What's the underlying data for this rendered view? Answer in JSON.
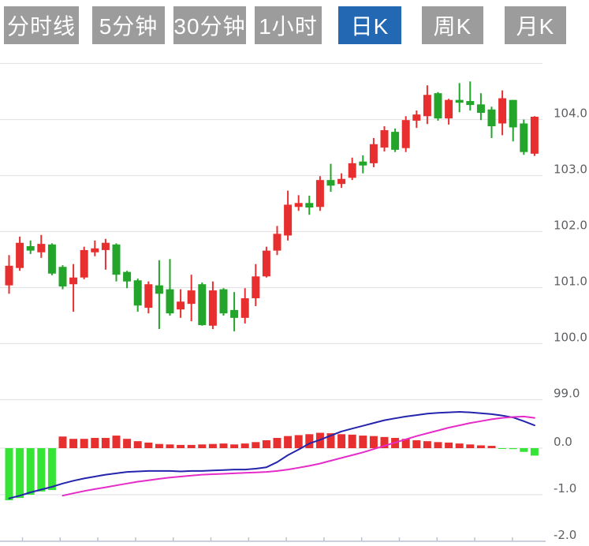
{
  "toolbar": {
    "tabs": [
      {
        "label": "分时线",
        "active": false
      },
      {
        "label": "5分钟",
        "active": false
      },
      {
        "label": "30分钟",
        "active": false
      },
      {
        "label": "1小时",
        "active": false
      },
      {
        "label": "日K",
        "active": true
      },
      {
        "label": "周K",
        "active": false
      },
      {
        "label": "月K",
        "active": false
      }
    ]
  },
  "colors": {
    "background": "#ffffff",
    "tab_bg": "#9c9c9c",
    "tab_active_bg": "#2268b2",
    "tab_text": "#ffffff",
    "candle_up": "#e82f2f",
    "candle_down": "#23a42a",
    "macd_bar_up": "#e82f2f",
    "macd_bar_down": "#36e436",
    "dif_line": "#2424ad",
    "dea_line": "#e62cc8",
    "grid": "#e4e4e6",
    "axis": "#b9c2d2",
    "label": "#5d5f63"
  },
  "chart_data": {
    "type": "candlestick+macd",
    "title": "",
    "price_axis": {
      "labels": [
        "104.0",
        "103.0",
        "102.0",
        "101.0",
        "100.0",
        "99.0"
      ],
      "values": [
        104,
        103,
        102,
        101,
        100,
        99
      ],
      "unlabeled_top_gridline": 105,
      "ylim": [
        98.6,
        105.1
      ],
      "grid": true
    },
    "macd_axis": {
      "labels": [
        "0.0",
        "-1.0",
        "-2.0"
      ],
      "values": [
        0,
        -1,
        -2
      ],
      "ylim": [
        -2.1,
        1.0
      ]
    },
    "x_ticks": {
      "start": 28.5,
      "spacing": 47.8,
      "count": 14,
      "labels_visible": false
    },
    "candles": [
      {
        "o": 101.04,
        "h": 101.58,
        "l": 100.89,
        "c": 101.39
      },
      {
        "o": 101.35,
        "h": 101.91,
        "l": 101.3,
        "c": 101.8
      },
      {
        "o": 101.74,
        "h": 101.84,
        "l": 101.6,
        "c": 101.66
      },
      {
        "o": 101.63,
        "h": 101.94,
        "l": 101.53,
        "c": 101.78
      },
      {
        "o": 101.77,
        "h": 101.79,
        "l": 101.22,
        "c": 101.25
      },
      {
        "o": 101.37,
        "h": 101.4,
        "l": 100.97,
        "c": 101.02
      },
      {
        "o": 101.06,
        "h": 101.42,
        "l": 100.57,
        "c": 101.18
      },
      {
        "o": 101.18,
        "h": 101.73,
        "l": 101.15,
        "c": 101.67
      },
      {
        "o": 101.63,
        "h": 101.84,
        "l": 101.56,
        "c": 101.7
      },
      {
        "o": 101.67,
        "h": 101.87,
        "l": 101.32,
        "c": 101.8
      },
      {
        "o": 101.77,
        "h": 101.79,
        "l": 101.11,
        "c": 101.23
      },
      {
        "o": 101.28,
        "h": 101.3,
        "l": 100.99,
        "c": 101.11
      },
      {
        "o": 101.13,
        "h": 101.16,
        "l": 100.57,
        "c": 100.68
      },
      {
        "o": 100.64,
        "h": 101.11,
        "l": 100.54,
        "c": 101.06
      },
      {
        "o": 101.04,
        "h": 101.49,
        "l": 100.26,
        "c": 100.89
      },
      {
        "o": 100.97,
        "h": 101.51,
        "l": 100.5,
        "c": 100.54
      },
      {
        "o": 100.61,
        "h": 100.97,
        "l": 100.46,
        "c": 100.75
      },
      {
        "o": 100.71,
        "h": 101.23,
        "l": 100.4,
        "c": 100.95
      },
      {
        "o": 101.06,
        "h": 101.09,
        "l": 100.32,
        "c": 100.33
      },
      {
        "o": 100.32,
        "h": 101.11,
        "l": 100.26,
        "c": 100.95
      },
      {
        "o": 100.97,
        "h": 100.99,
        "l": 100.5,
        "c": 100.54
      },
      {
        "o": 100.6,
        "h": 100.92,
        "l": 100.22,
        "c": 100.46
      },
      {
        "o": 100.46,
        "h": 100.99,
        "l": 100.36,
        "c": 100.81
      },
      {
        "o": 100.81,
        "h": 101.42,
        "l": 100.67,
        "c": 101.2
      },
      {
        "o": 101.2,
        "h": 101.73,
        "l": 101.18,
        "c": 101.66
      },
      {
        "o": 101.66,
        "h": 102.1,
        "l": 101.58,
        "c": 101.96
      },
      {
        "o": 101.93,
        "h": 102.73,
        "l": 101.84,
        "c": 102.48
      },
      {
        "o": 102.44,
        "h": 102.65,
        "l": 102.37,
        "c": 102.51
      },
      {
        "o": 102.51,
        "h": 102.64,
        "l": 102.3,
        "c": 102.43
      },
      {
        "o": 102.44,
        "h": 102.99,
        "l": 102.37,
        "c": 102.92
      },
      {
        "o": 102.92,
        "h": 103.21,
        "l": 102.71,
        "c": 102.82
      },
      {
        "o": 102.85,
        "h": 103.04,
        "l": 102.78,
        "c": 102.94
      },
      {
        "o": 102.96,
        "h": 103.32,
        "l": 102.92,
        "c": 103.22
      },
      {
        "o": 103.25,
        "h": 103.36,
        "l": 103.04,
        "c": 103.18
      },
      {
        "o": 103.22,
        "h": 103.67,
        "l": 103.15,
        "c": 103.56
      },
      {
        "o": 103.5,
        "h": 103.88,
        "l": 103.43,
        "c": 103.81
      },
      {
        "o": 103.78,
        "h": 103.84,
        "l": 103.42,
        "c": 103.46
      },
      {
        "o": 103.49,
        "h": 104.06,
        "l": 103.42,
        "c": 103.99
      },
      {
        "o": 103.98,
        "h": 104.16,
        "l": 103.85,
        "c": 104.09
      },
      {
        "o": 104.06,
        "h": 104.61,
        "l": 103.92,
        "c": 104.44
      },
      {
        "o": 104.47,
        "h": 104.49,
        "l": 103.98,
        "c": 104.02
      },
      {
        "o": 104.02,
        "h": 104.37,
        "l": 103.91,
        "c": 104.35
      },
      {
        "o": 104.35,
        "h": 104.65,
        "l": 104.13,
        "c": 104.3
      },
      {
        "o": 104.33,
        "h": 104.68,
        "l": 104.16,
        "c": 104.26
      },
      {
        "o": 104.27,
        "h": 104.47,
        "l": 103.99,
        "c": 104.12
      },
      {
        "o": 104.18,
        "h": 104.23,
        "l": 103.67,
        "c": 103.88
      },
      {
        "o": 103.93,
        "h": 104.52,
        "l": 103.72,
        "c": 104.38
      },
      {
        "o": 104.35,
        "h": 104.35,
        "l": 103.61,
        "c": 103.86
      },
      {
        "o": 103.93,
        "h": 104.0,
        "l": 103.37,
        "c": 103.42
      },
      {
        "o": 103.39,
        "h": 104.06,
        "l": 103.35,
        "c": 104.05
      }
    ],
    "macd": {
      "histogram": [
        -1.12,
        -1.07,
        -1.0,
        -0.93,
        -0.9,
        0.25,
        0.2,
        0.2,
        0.22,
        0.22,
        0.27,
        0.2,
        0.15,
        0.12,
        0.09,
        0.08,
        0.07,
        0.07,
        0.08,
        0.09,
        0.1,
        0.08,
        0.1,
        0.13,
        0.17,
        0.22,
        0.26,
        0.28,
        0.3,
        0.33,
        0.32,
        0.3,
        0.29,
        0.27,
        0.26,
        0.24,
        0.22,
        0.2,
        0.17,
        0.15,
        0.13,
        0.12,
        0.1,
        0.08,
        0.06,
        0.05,
        -0.01,
        -0.02,
        -0.08,
        -0.16
      ],
      "dif": [
        -1.08,
        -1.02,
        -0.95,
        -0.89,
        -0.83,
        -0.76,
        -0.7,
        -0.65,
        -0.61,
        -0.57,
        -0.54,
        -0.51,
        -0.5,
        -0.49,
        -0.49,
        -0.49,
        -0.5,
        -0.49,
        -0.49,
        -0.48,
        -0.47,
        -0.46,
        -0.46,
        -0.44,
        -0.41,
        -0.3,
        -0.15,
        -0.03,
        0.1,
        0.18,
        0.27,
        0.36,
        0.42,
        0.48,
        0.54,
        0.6,
        0.64,
        0.68,
        0.71,
        0.74,
        0.76,
        0.77,
        0.78,
        0.77,
        0.75,
        0.73,
        0.7,
        0.66,
        0.58,
        0.49
      ],
      "dea": [
        null,
        null,
        null,
        null,
        null,
        -1.02,
        -0.97,
        -0.92,
        -0.88,
        -0.84,
        -0.8,
        -0.76,
        -0.72,
        -0.69,
        -0.66,
        -0.63,
        -0.61,
        -0.59,
        -0.57,
        -0.56,
        -0.55,
        -0.54,
        -0.53,
        -0.52,
        -0.51,
        -0.49,
        -0.46,
        -0.42,
        -0.38,
        -0.33,
        -0.27,
        -0.21,
        -0.15,
        -0.09,
        -0.02,
        0.05,
        0.12,
        0.19,
        0.26,
        0.32,
        0.38,
        0.44,
        0.49,
        0.54,
        0.58,
        0.62,
        0.65,
        0.67,
        0.68,
        0.65
      ]
    }
  }
}
